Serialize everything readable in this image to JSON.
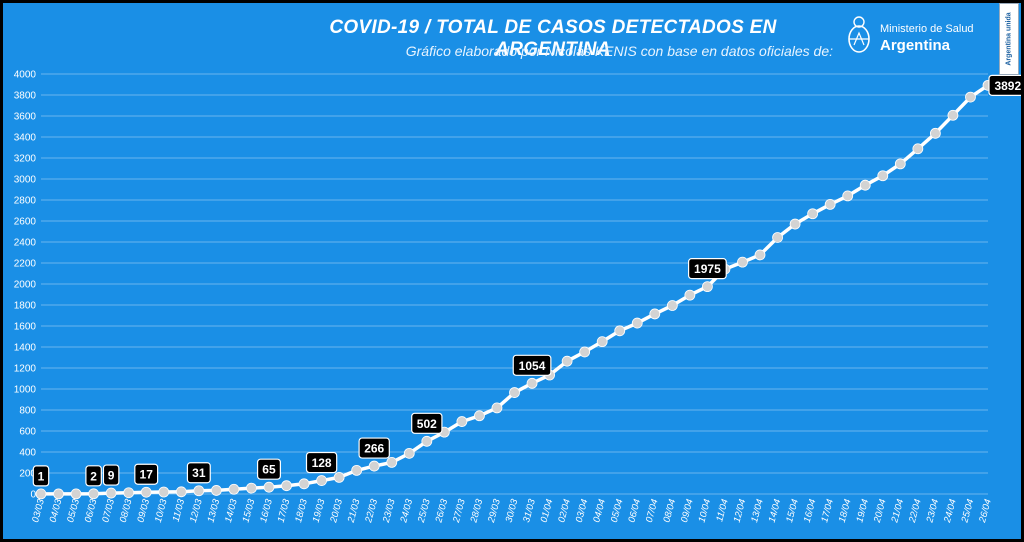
{
  "header": {
    "title": "COVID-19  /  TOTAL DE CASOS DETECTADOS EN ARGENTINA",
    "subtitle": "Gráfico elaborado por Nicolás KENIS con base en datos oficiales de:",
    "logo_ministry": "Ministerio de Salud",
    "logo_country": "Argentina",
    "side_tag": "Argentina unida"
  },
  "colors": {
    "background": "#1a8fe6",
    "line": "#ffffff",
    "marker": "#d3d3d3",
    "label_box": "#000000",
    "label_text": "#ffffff"
  },
  "chart_data": {
    "type": "line",
    "title": "COVID-19  /  TOTAL DE CASOS DETECTADOS EN ARGENTINA",
    "xlabel": "",
    "ylabel": "",
    "ylim": [
      0,
      4000
    ],
    "yticks": [
      0,
      200,
      400,
      600,
      800,
      1000,
      1200,
      1400,
      1600,
      1800,
      2000,
      2200,
      2400,
      2600,
      2800,
      3000,
      3200,
      3400,
      3600,
      3800,
      4000
    ],
    "grid": true,
    "legend": "none",
    "categories": [
      "03/03",
      "04/03",
      "05/03",
      "06/03",
      "07/03",
      "08/03",
      "09/03",
      "10/03",
      "11/03",
      "12/03",
      "13/03",
      "14/03",
      "15/03",
      "16/03",
      "17/03",
      "18/03",
      "19/03",
      "20/03",
      "21/03",
      "22/03",
      "23/03",
      "24/03",
      "25/03",
      "26/03",
      "27/03",
      "28/03",
      "29/03",
      "30/03",
      "31/03",
      "01/04",
      "02/04",
      "03/04",
      "04/04",
      "05/04",
      "06/04",
      "07/04",
      "08/04",
      "09/04",
      "10/04",
      "11/04",
      "12/04",
      "13/04",
      "14/04",
      "15/04",
      "16/04",
      "17/04",
      "18/04",
      "19/04",
      "20/04",
      "21/04",
      "22/04",
      "23/04",
      "24/04",
      "25/04",
      "26/04"
    ],
    "values": [
      1,
      1,
      1,
      2,
      9,
      12,
      17,
      19,
      21,
      31,
      34,
      45,
      56,
      65,
      79,
      97,
      128,
      158,
      225,
      266,
      301,
      387,
      502,
      589,
      690,
      745,
      820,
      966,
      1054,
      1133,
      1265,
      1353,
      1451,
      1554,
      1628,
      1715,
      1795,
      1894,
      1975,
      2142,
      2208,
      2277,
      2443,
      2571,
      2669,
      2758,
      2839,
      2941,
      3031,
      3144,
      3288,
      3435,
      3607,
      3780,
      3892
    ],
    "labeled_points": [
      {
        "category": "03/03",
        "value": 1
      },
      {
        "category": "06/03",
        "value": 2
      },
      {
        "category": "07/03",
        "value": 9
      },
      {
        "category": "09/03",
        "value": 17
      },
      {
        "category": "12/03",
        "value": 31
      },
      {
        "category": "16/03",
        "value": 65
      },
      {
        "category": "19/03",
        "value": 128
      },
      {
        "category": "22/03",
        "value": 266
      },
      {
        "category": "25/03",
        "value": 502
      },
      {
        "category": "31/03",
        "value": 1054
      },
      {
        "category": "10/04",
        "value": 1975
      },
      {
        "category": "26/04",
        "value": 3892
      }
    ]
  }
}
